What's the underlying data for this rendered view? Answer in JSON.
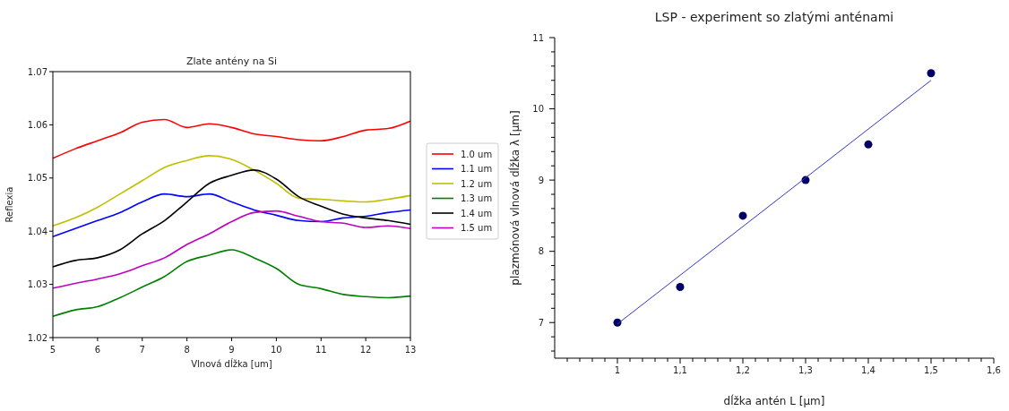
{
  "chart_data": [
    {
      "type": "line",
      "title": "Zlate antény na Si",
      "xlabel": "Vlnová dĺžka [um]",
      "ylabel": "Reflexia",
      "xlim": [
        5,
        13
      ],
      "ylim": [
        1.02,
        1.07
      ],
      "xticks": [
        5,
        6,
        7,
        8,
        9,
        10,
        11,
        12,
        13
      ],
      "yticks": [
        1.02,
        1.03,
        1.04,
        1.05,
        1.06,
        1.07
      ],
      "grid": false,
      "legend": "right",
      "line_style": "solid",
      "marker": "none",
      "x": [
        5,
        5.5,
        6,
        6.5,
        7,
        7.5,
        8,
        8.5,
        9,
        9.5,
        10,
        10.5,
        11,
        11.5,
        12,
        12.5,
        13
      ],
      "series": [
        {
          "name": "1.0 um",
          "color": "#ff0000",
          "values": [
            1.0537,
            1.0555,
            1.057,
            1.0585,
            1.0605,
            1.061,
            1.0595,
            1.0602,
            1.0595,
            1.0583,
            1.0578,
            1.0572,
            1.057,
            1.0578,
            1.059,
            1.0593,
            1.0607
          ]
        },
        {
          "name": "1.1 um",
          "color": "#0000ff",
          "values": [
            1.039,
            1.0405,
            1.042,
            1.0435,
            1.0455,
            1.047,
            1.0465,
            1.047,
            1.0455,
            1.044,
            1.043,
            1.042,
            1.0418,
            1.0425,
            1.0428,
            1.0435,
            1.044
          ]
        },
        {
          "name": "1.2 um",
          "color": "#bfbf00",
          "values": [
            1.041,
            1.0425,
            1.0445,
            1.047,
            1.0495,
            1.052,
            1.0533,
            1.0542,
            1.0535,
            1.0515,
            1.049,
            1.0462,
            1.046,
            1.0457,
            1.0455,
            1.046,
            1.0467
          ]
        },
        {
          "name": "1.3 um",
          "color": "#008000",
          "values": [
            1.024,
            1.0252,
            1.0258,
            1.0275,
            1.0295,
            1.0315,
            1.0343,
            1.0355,
            1.0365,
            1.035,
            1.033,
            1.03,
            1.0292,
            1.0281,
            1.0277,
            1.0275,
            1.0278
          ]
        },
        {
          "name": "1.4 um",
          "color": "#000000",
          "values": [
            1.0333,
            1.0345,
            1.035,
            1.0365,
            1.0395,
            1.042,
            1.0455,
            1.049,
            1.0505,
            1.0515,
            1.0498,
            1.0465,
            1.0447,
            1.0432,
            1.0425,
            1.042,
            1.0413
          ]
        },
        {
          "name": "1.5 um",
          "color": "#bf00bf",
          "values": [
            1.0293,
            1.0302,
            1.031,
            1.032,
            1.0335,
            1.035,
            1.0375,
            1.0395,
            1.0418,
            1.0435,
            1.0438,
            1.0428,
            1.0418,
            1.0415,
            1.0407,
            1.041,
            1.0405
          ]
        }
      ]
    },
    {
      "type": "scatter",
      "title": "LSP - experiment so zlatými anténami",
      "xlabel": "dĺžka antén L [µm]",
      "ylabel": "plazmónová vlnová dĺžka λ [µm]",
      "xlim": [
        0.9,
        1.6
      ],
      "ylim": [
        6.5,
        11
      ],
      "grid": false,
      "legend": false,
      "xticks": [
        {
          "value": 0.92,
          "label": null
        },
        {
          "value": 0.94,
          "label": null
        },
        {
          "value": 0.96,
          "label": null
        },
        {
          "value": 0.98,
          "label": null
        },
        1,
        {
          "value": 1.02,
          "label": null
        },
        {
          "value": 1.04,
          "label": null
        },
        {
          "value": 1.06,
          "label": null
        },
        {
          "value": 1.08,
          "label": null
        },
        {
          "value": 1.1,
          "label": "1,1"
        },
        {
          "value": 1.12,
          "label": null
        },
        {
          "value": 1.14,
          "label": null
        },
        {
          "value": 1.16,
          "label": null
        },
        {
          "value": 1.18,
          "label": null
        },
        {
          "value": 1.2,
          "label": "1,2"
        },
        {
          "value": 1.22,
          "label": null
        },
        {
          "value": 1.24,
          "label": null
        },
        {
          "value": 1.26,
          "label": null
        },
        {
          "value": 1.28,
          "label": null
        },
        {
          "value": 1.3,
          "label": "1,3"
        },
        {
          "value": 1.32,
          "label": null
        },
        {
          "value": 1.34,
          "label": null
        },
        {
          "value": 1.36,
          "label": null
        },
        {
          "value": 1.38,
          "label": null
        },
        {
          "value": 1.4,
          "label": "1,4"
        },
        {
          "value": 1.42,
          "label": null
        },
        {
          "value": 1.44,
          "label": null
        },
        {
          "value": 1.46,
          "label": null
        },
        {
          "value": 1.48,
          "label": null
        },
        {
          "value": 1.5,
          "label": "1,5"
        },
        {
          "value": 1.52,
          "label": null
        },
        {
          "value": 1.54,
          "label": null
        },
        {
          "value": 1.56,
          "label": null
        },
        {
          "value": 1.58,
          "label": null
        },
        {
          "value": 1.6,
          "label": "1,6"
        }
      ],
      "yticks": [
        {
          "value": 6.6,
          "label": null
        },
        {
          "value": 6.8,
          "label": null
        },
        7,
        {
          "value": 7.2,
          "label": null
        },
        {
          "value": 7.4,
          "label": null
        },
        {
          "value": 7.6,
          "label": null
        },
        {
          "value": 7.8,
          "label": null
        },
        8,
        {
          "value": 8.2,
          "label": null
        },
        {
          "value": 8.4,
          "label": null
        },
        {
          "value": 8.6,
          "label": null
        },
        {
          "value": 8.8,
          "label": null
        },
        9,
        {
          "value": 9.2,
          "label": null
        },
        {
          "value": 9.4,
          "label": null
        },
        {
          "value": 9.6,
          "label": null
        },
        {
          "value": 9.8,
          "label": null
        },
        10,
        {
          "value": 10.2,
          "label": null
        },
        {
          "value": 10.4,
          "label": null
        },
        {
          "value": 10.6,
          "label": null
        },
        {
          "value": 10.8,
          "label": null
        },
        11
      ],
      "series": [
        {
          "type": "scatter",
          "color": "#000066",
          "marker": "circle",
          "x": [
            1,
            1.1,
            1.2,
            1.3,
            1.4,
            1.5
          ],
          "values": [
            7,
            7.5,
            8.5,
            9,
            9.5,
            10.5
          ]
        },
        {
          "type": "line",
          "color": "#3333cc",
          "line_style": "solid",
          "marker": "none",
          "x": [
            1,
            1.5
          ],
          "values": [
            6.98,
            10.4
          ]
        }
      ]
    }
  ]
}
